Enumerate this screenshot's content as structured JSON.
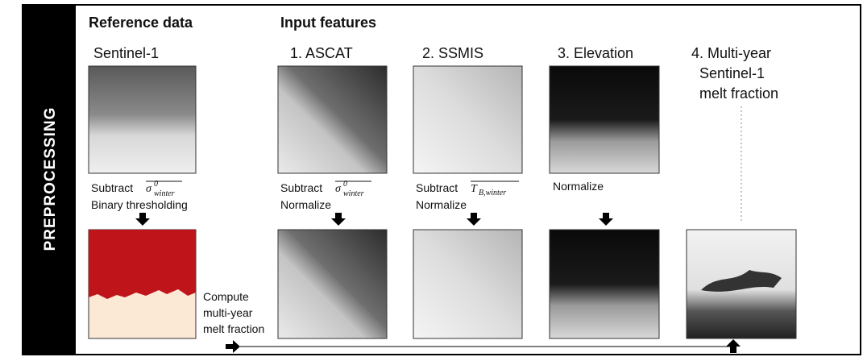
{
  "sidebar": "PREPROCESSING",
  "sections": [
    "Reference data",
    "Input features"
  ],
  "columns": [
    "Sentinel-1",
    "1. ASCAT",
    "2. SSMIS",
    "3. Elevation"
  ],
  "multi_year_title": [
    "4. Multi-year",
    "Sentinel-1",
    "melt fraction"
  ],
  "steps": {
    "sentinel": {
      "prefix": "Subtract",
      "symbol": "σ",
      "sup": "0",
      "sub": "winter",
      "next": "Binary thresholding"
    },
    "ascat": {
      "prefix": "Subtract",
      "symbol": "σ",
      "sup": "0",
      "sub": "winter",
      "next": "Normalize"
    },
    "ssmis": {
      "prefix": "Subtract",
      "symbol": "T",
      "sub": "B,winter",
      "next": "Normalize"
    },
    "elevation": {
      "next": "Normalize"
    }
  },
  "compute": [
    "Compute",
    "multi-year",
    "melt fraction"
  ]
}
